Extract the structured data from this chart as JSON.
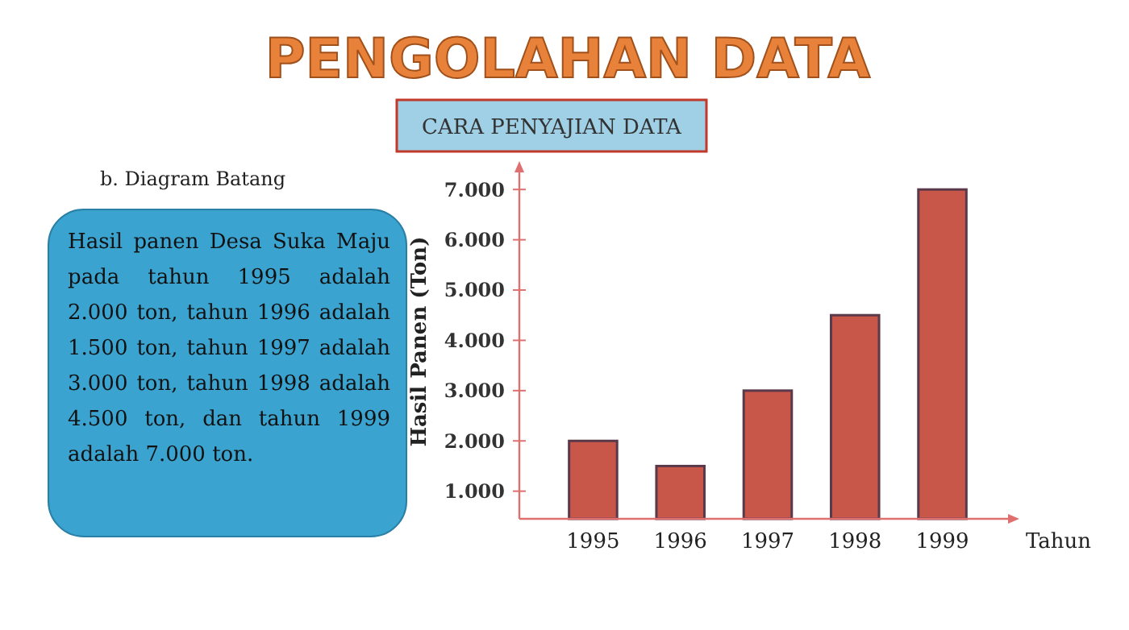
{
  "chart_data": {
    "type": "bar",
    "title": "PENGOLAHAN DATA",
    "subtitle": "CARA PENYAJIAN DATA",
    "xlabel": "Tahun",
    "ylabel": "Hasil Panen (Ton)",
    "annotations": [
      "b. Diagram Batang",
      "Hasil panen Desa Suka Maju pada tahun 1995 adalah 2.000 ton, tahun 1996 adalah 1.500 ton, tahun 1997 adalah 3.000 ton, tahun 1998 adalah 4.500 ton, dan tahun 1999 adalah 7.000 ton."
    ],
    "categories": [
      "1995",
      "1996",
      "1997",
      "1998",
      "1999"
    ],
    "values": [
      2000,
      1500,
      3000,
      4500,
      7000
    ],
    "color": "#c8574a",
    "ylim": [
      450,
      7500
    ],
    "yticks": [
      {
        "value": 1000,
        "label": "1.000"
      },
      {
        "value": 2000,
        "label": "2.000"
      },
      {
        "value": 3000,
        "label": "3.000"
      },
      {
        "value": 4000,
        "label": "4.000"
      },
      {
        "value": 5000,
        "label": "5.000"
      },
      {
        "value": 6000,
        "label": "6.000"
      },
      {
        "value": 7000,
        "label": "7.000"
      }
    ],
    "grid": false
  }
}
